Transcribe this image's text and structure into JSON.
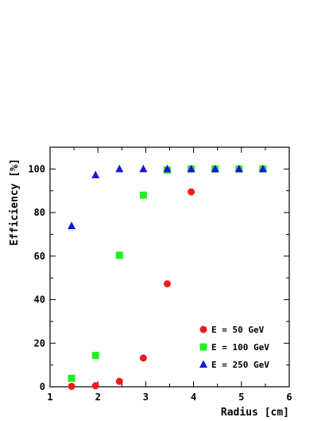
{
  "chart_data": {
    "type": "scatter",
    "xlabel": "Radius [cm]",
    "ylabel": "Efficiency [%]",
    "xlim": [
      1,
      6
    ],
    "ylim": [
      0,
      110
    ],
    "xticks": [
      "1",
      "2",
      "3",
      "4",
      "5",
      "6"
    ],
    "yticks": [
      "0",
      "20",
      "40",
      "60",
      "80",
      "100"
    ],
    "legend_position": "bottom-right",
    "grid": false,
    "series": [
      {
        "name": "E = 50 GeV",
        "marker": "circle",
        "color": "#ee1c1c",
        "x": [
          1.45,
          1.95,
          2.45,
          2.95,
          3.45,
          3.95
        ],
        "y": [
          0.2,
          0.5,
          2.5,
          13.2,
          47.3,
          89.5
        ]
      },
      {
        "name": "E = 100 GeV",
        "marker": "square",
        "color": "#22ee22",
        "x": [
          1.45,
          1.95,
          2.45,
          2.95,
          3.45,
          3.95,
          4.45,
          4.95,
          5.45
        ],
        "y": [
          3.9,
          14.4,
          60.4,
          88.0,
          99.5,
          100,
          100,
          100,
          100
        ]
      },
      {
        "name": "E = 250 GeV",
        "marker": "triangle",
        "color": "#1515dd",
        "x": [
          1.45,
          1.95,
          2.45,
          2.95,
          3.45,
          3.95,
          4.45,
          4.95,
          5.45
        ],
        "y": [
          73.8,
          97.2,
          100,
          100,
          100,
          100,
          100,
          100,
          100
        ]
      }
    ]
  }
}
